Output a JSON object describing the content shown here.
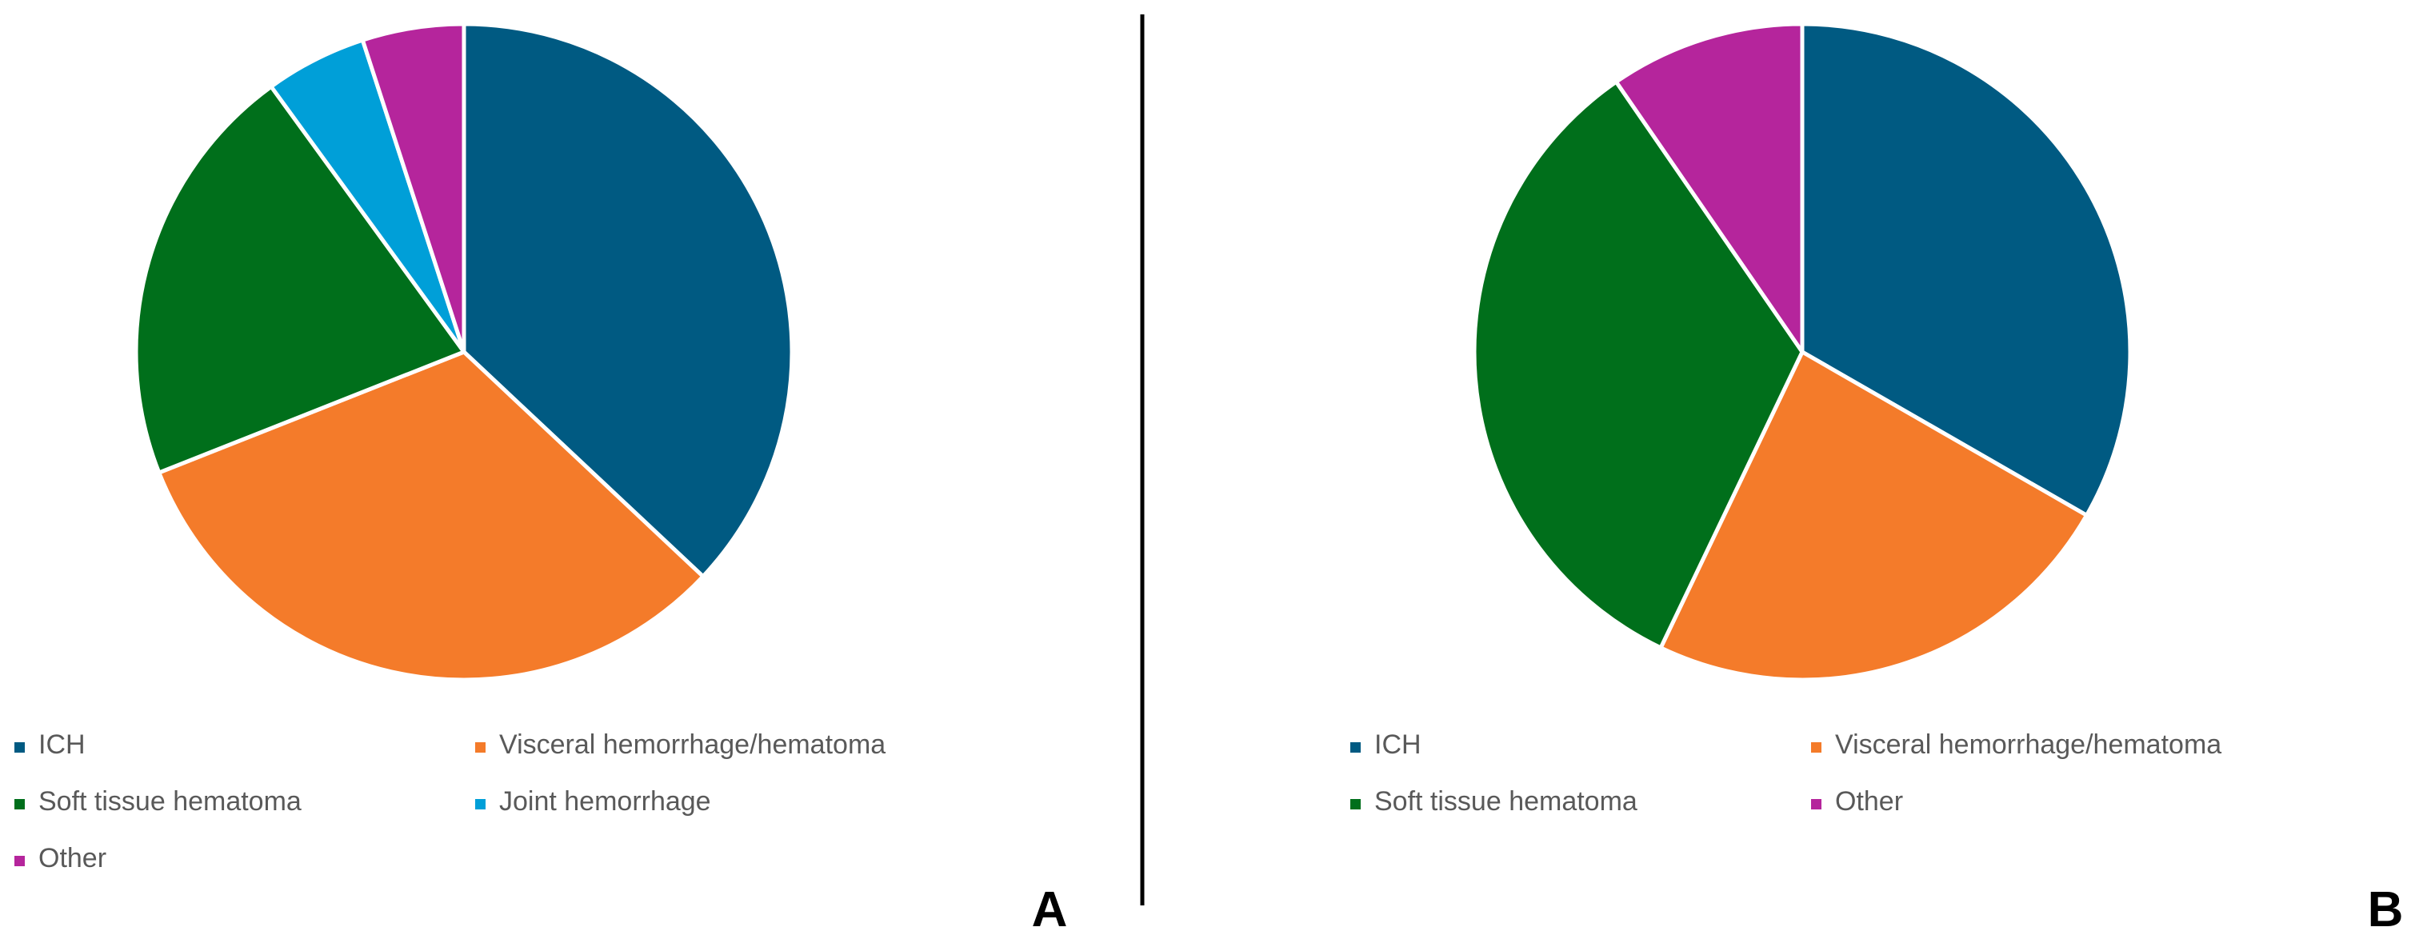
{
  "chart_data": [
    {
      "type": "pie",
      "panel_label": "A",
      "categories": [
        "ICH",
        "Visceral hemorrhage/hematoma",
        "Soft tissue hematoma",
        "Joint hemorrhage",
        "Other"
      ],
      "values": [
        37,
        32,
        21,
        5,
        5
      ],
      "colors": [
        "#005a82",
        "#f47b2a",
        "#006f1b",
        "#009fd8",
        "#b5259c"
      ],
      "legend_position": "bottom",
      "start_angle": "12 o'clock",
      "direction": "clockwise"
    },
    {
      "type": "pie",
      "panel_label": "B",
      "categories": [
        "ICH",
        "Visceral hemorrhage/hematoma",
        "Soft tissue hematoma",
        "Other"
      ],
      "values": [
        33.3,
        23.8,
        33.3,
        9.6
      ],
      "colors": [
        "#005a82",
        "#f47b2a",
        "#006f1b",
        "#b5259c"
      ],
      "legend_position": "bottom",
      "start_angle": "12 o'clock",
      "direction": "clockwise"
    }
  ],
  "divider": {
    "color": "#000000"
  }
}
